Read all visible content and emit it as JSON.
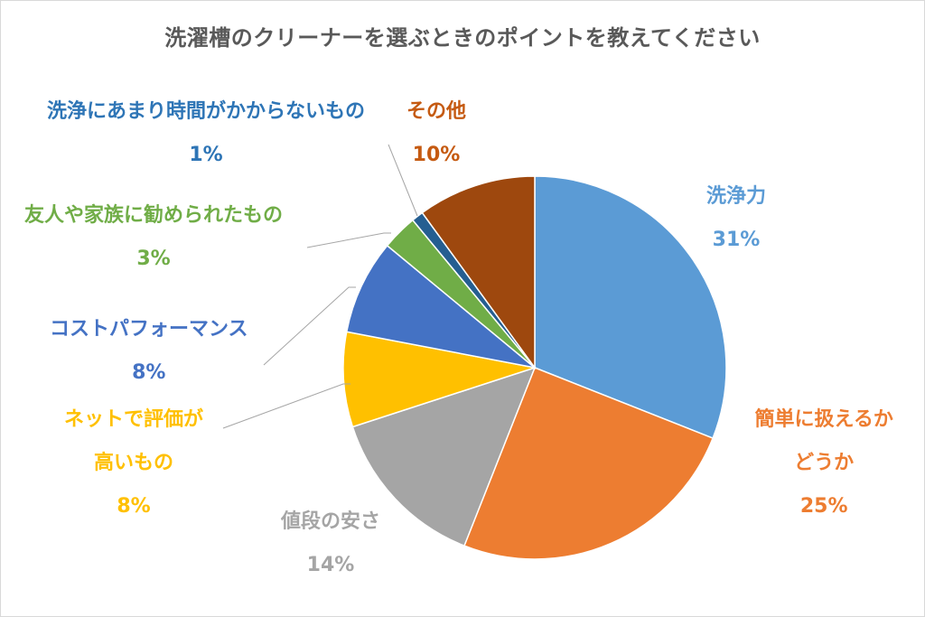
{
  "chart_data": {
    "type": "pie",
    "title": "洗濯槽のクリーナーを選ぶときのポイントを教えてください",
    "start_angle_deg": 0,
    "direction": "clockwise",
    "slices": [
      {
        "label": "洗浄力",
        "value": 31,
        "value_label": "31%",
        "color": "#5B9BD5"
      },
      {
        "label": "簡単に扱えるかどうか",
        "label_lines": [
          "簡単に扱えるか",
          "どうか"
        ],
        "value": 25,
        "value_label": "25%",
        "color": "#ED7D31"
      },
      {
        "label": "値段の安さ",
        "value": 14,
        "value_label": "14%",
        "color": "#A5A5A5"
      },
      {
        "label": "ネットで評価が高いもの",
        "label_lines": [
          "ネットで評価が",
          "高いもの"
        ],
        "value": 8,
        "value_label": "8%",
        "color": "#FFC000"
      },
      {
        "label": "コストパフォーマンス",
        "value": 8,
        "value_label": "8%",
        "color": "#4472C4"
      },
      {
        "label": "友人や家族に勧められたもの",
        "value": 3,
        "value_label": "3%",
        "color": "#70AD47"
      },
      {
        "label": "洗浄にあまり時間がかからないもの",
        "value": 1,
        "value_label": "1%",
        "color": "#255E91"
      },
      {
        "label": "その他",
        "value": 10,
        "value_label": "10%",
        "color": "#9E480E"
      }
    ],
    "legend": "none",
    "data_labels": "outside-with-leader-lines"
  }
}
